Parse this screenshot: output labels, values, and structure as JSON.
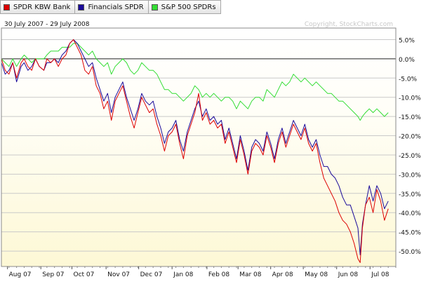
{
  "legend": [
    {
      "label": "SPDR KBW Bank",
      "color": "#dd0000"
    },
    {
      "label": "Financials SPDR",
      "color": "#1a0a9a"
    },
    {
      "label": "S&P 500 SPDRs",
      "color": "#33dd33"
    }
  ],
  "date_range": "30 July 2007 - 29 July 2008",
  "watermark": "Copyright, StockCharts.com",
  "chart_data": {
    "type": "line",
    "title": "30 July 2007 - 29 July 2008",
    "xlabel": "",
    "ylabel": "",
    "x_range": [
      0,
      52
    ],
    "ylim": [
      -54,
      8
    ],
    "y_ticks": [
      5,
      0,
      -5,
      -10,
      -15,
      -20,
      -25,
      -30,
      -35,
      -40,
      -45,
      -50
    ],
    "y_tick_labels": [
      "5.0%",
      "0.0%",
      "-5.0%",
      "-10.0%",
      "-15.0%",
      "-20.0%",
      "-25.0%",
      "-30.0%",
      "-35.0%",
      "-40.0%",
      "-45.0%",
      "-50.0%"
    ],
    "x_ticks": [
      {
        "label": "Aug 07",
        "x": 0.8
      },
      {
        "label": "Sep 07",
        "x": 5.2
      },
      {
        "label": "Oct 07",
        "x": 9.3
      },
      {
        "label": "Nov 07",
        "x": 13.8
      },
      {
        "label": "Dec 07",
        "x": 18.1
      },
      {
        "label": "Jan 08",
        "x": 22.5
      },
      {
        "label": "Feb 08",
        "x": 27.1
      },
      {
        "label": "Mar 08",
        "x": 31.2
      },
      {
        "label": "Apr 08",
        "x": 35.5
      },
      {
        "label": "May 08",
        "x": 39.8
      },
      {
        "label": "Jun 08",
        "x": 44.2
      },
      {
        "label": "Jul 08",
        "x": 48.6
      }
    ],
    "series": [
      {
        "name": "SPDR KBW Bank",
        "color": "#dd0000",
        "points": [
          [
            0,
            0
          ],
          [
            0.5,
            -3
          ],
          [
            1,
            -4
          ],
          [
            1.5,
            -1
          ],
          [
            2,
            -5
          ],
          [
            2.6,
            -1
          ],
          [
            3,
            0
          ],
          [
            3.5,
            -2
          ],
          [
            4,
            -3
          ],
          [
            4.5,
            0
          ],
          [
            5,
            -2
          ],
          [
            5.6,
            -3
          ],
          [
            6,
            0
          ],
          [
            6.5,
            -1
          ],
          [
            7,
            0
          ],
          [
            7.5,
            -2
          ],
          [
            8,
            0
          ],
          [
            8.5,
            1
          ],
          [
            9,
            4
          ],
          [
            9.5,
            5
          ],
          [
            10,
            3
          ],
          [
            10.5,
            1
          ],
          [
            11,
            -3
          ],
          [
            11.5,
            -4
          ],
          [
            12,
            -2
          ],
          [
            12.5,
            -7
          ],
          [
            13,
            -9
          ],
          [
            13.5,
            -13
          ],
          [
            14,
            -11
          ],
          [
            14.5,
            -16
          ],
          [
            15,
            -11
          ],
          [
            15.5,
            -9
          ],
          [
            16,
            -7
          ],
          [
            16.5,
            -11
          ],
          [
            17,
            -15
          ],
          [
            17.5,
            -18
          ],
          [
            18,
            -14
          ],
          [
            18.5,
            -10
          ],
          [
            19,
            -12
          ],
          [
            19.5,
            -14
          ],
          [
            20,
            -13
          ],
          [
            20.5,
            -17
          ],
          [
            21,
            -20
          ],
          [
            21.5,
            -24
          ],
          [
            22,
            -20
          ],
          [
            22.5,
            -19
          ],
          [
            23,
            -17
          ],
          [
            23.5,
            -22
          ],
          [
            24,
            -26
          ],
          [
            24.5,
            -20
          ],
          [
            25,
            -17
          ],
          [
            25.5,
            -14
          ],
          [
            26,
            -9
          ],
          [
            26.5,
            -16
          ],
          [
            27,
            -14
          ],
          [
            27.5,
            -17
          ],
          [
            28,
            -16
          ],
          [
            28.5,
            -18
          ],
          [
            29,
            -17
          ],
          [
            29.5,
            -22
          ],
          [
            30,
            -19
          ],
          [
            30.5,
            -23
          ],
          [
            31,
            -27
          ],
          [
            31.5,
            -21
          ],
          [
            32,
            -25
          ],
          [
            32.5,
            -30
          ],
          [
            33,
            -24
          ],
          [
            33.5,
            -22
          ],
          [
            34,
            -23
          ],
          [
            34.5,
            -25
          ],
          [
            35,
            -20
          ],
          [
            35.5,
            -23
          ],
          [
            36,
            -27
          ],
          [
            36.5,
            -22
          ],
          [
            37,
            -19
          ],
          [
            37.5,
            -23
          ],
          [
            38,
            -20
          ],
          [
            38.5,
            -17
          ],
          [
            39,
            -19
          ],
          [
            39.5,
            -21
          ],
          [
            40,
            -18
          ],
          [
            40.5,
            -22
          ],
          [
            41,
            -24
          ],
          [
            41.5,
            -22
          ],
          [
            42,
            -27
          ],
          [
            42.5,
            -31
          ],
          [
            43,
            -33
          ],
          [
            43.5,
            -35
          ],
          [
            44,
            -37
          ],
          [
            44.5,
            -40
          ],
          [
            45,
            -42
          ],
          [
            45.5,
            -43
          ],
          [
            46,
            -45
          ],
          [
            46.5,
            -48
          ],
          [
            47,
            -52
          ],
          [
            47.3,
            -53
          ],
          [
            47.6,
            -44
          ],
          [
            48,
            -38
          ],
          [
            48.5,
            -36
          ],
          [
            49,
            -40
          ],
          [
            49.5,
            -34
          ],
          [
            50,
            -37
          ],
          [
            50.5,
            -42
          ],
          [
            51,
            -39
          ]
        ]
      },
      {
        "name": "Financials SPDR",
        "color": "#1a0a9a",
        "points": [
          [
            0,
            -1
          ],
          [
            0.5,
            -4
          ],
          [
            1,
            -3
          ],
          [
            1.5,
            -1
          ],
          [
            2,
            -6
          ],
          [
            2.6,
            -2
          ],
          [
            3,
            -1
          ],
          [
            3.5,
            -3
          ],
          [
            4,
            -2
          ],
          [
            4.5,
            0
          ],
          [
            5,
            -2
          ],
          [
            5.6,
            -3
          ],
          [
            6,
            -1
          ],
          [
            6.5,
            -1
          ],
          [
            7,
            0
          ],
          [
            7.5,
            -1
          ],
          [
            8,
            1
          ],
          [
            8.5,
            2
          ],
          [
            9,
            4
          ],
          [
            9.5,
            5
          ],
          [
            10,
            4
          ],
          [
            10.5,
            2
          ],
          [
            11,
            0
          ],
          [
            11.5,
            -2
          ],
          [
            12,
            -1
          ],
          [
            12.5,
            -5
          ],
          [
            13,
            -8
          ],
          [
            13.5,
            -11
          ],
          [
            14,
            -9
          ],
          [
            14.5,
            -14
          ],
          [
            15,
            -10
          ],
          [
            15.5,
            -8
          ],
          [
            16,
            -6
          ],
          [
            16.5,
            -10
          ],
          [
            17,
            -13
          ],
          [
            17.5,
            -16
          ],
          [
            18,
            -13
          ],
          [
            18.5,
            -9
          ],
          [
            19,
            -11
          ],
          [
            19.5,
            -12
          ],
          [
            20,
            -11
          ],
          [
            20.5,
            -15
          ],
          [
            21,
            -18
          ],
          [
            21.5,
            -22
          ],
          [
            22,
            -19
          ],
          [
            22.5,
            -18
          ],
          [
            23,
            -16
          ],
          [
            23.5,
            -21
          ],
          [
            24,
            -24
          ],
          [
            24.5,
            -19
          ],
          [
            25,
            -16
          ],
          [
            25.5,
            -13
          ],
          [
            26,
            -11
          ],
          [
            26.5,
            -15
          ],
          [
            27,
            -13
          ],
          [
            27.5,
            -16
          ],
          [
            28,
            -15
          ],
          [
            28.5,
            -17
          ],
          [
            29,
            -16
          ],
          [
            29.5,
            -21
          ],
          [
            30,
            -18
          ],
          [
            30.5,
            -22
          ],
          [
            31,
            -26
          ],
          [
            31.5,
            -20
          ],
          [
            32,
            -24
          ],
          [
            32.5,
            -29
          ],
          [
            33,
            -23
          ],
          [
            33.5,
            -21
          ],
          [
            34,
            -22
          ],
          [
            34.5,
            -24
          ],
          [
            35,
            -19
          ],
          [
            35.5,
            -22
          ],
          [
            36,
            -26
          ],
          [
            36.5,
            -21
          ],
          [
            37,
            -18
          ],
          [
            37.5,
            -22
          ],
          [
            38,
            -19
          ],
          [
            38.5,
            -16
          ],
          [
            39,
            -18
          ],
          [
            39.5,
            -20
          ],
          [
            40,
            -17
          ],
          [
            40.5,
            -21
          ],
          [
            41,
            -23
          ],
          [
            41.5,
            -21
          ],
          [
            42,
            -25
          ],
          [
            42.5,
            -28
          ],
          [
            43,
            -28
          ],
          [
            43.5,
            -30
          ],
          [
            44,
            -31
          ],
          [
            44.5,
            -33
          ],
          [
            45,
            -36
          ],
          [
            45.5,
            -38
          ],
          [
            46,
            -38
          ],
          [
            46.5,
            -41
          ],
          [
            47,
            -44
          ],
          [
            47.3,
            -51
          ],
          [
            47.6,
            -43
          ],
          [
            48,
            -38
          ],
          [
            48.5,
            -33
          ],
          [
            49,
            -37
          ],
          [
            49.5,
            -33
          ],
          [
            50,
            -35
          ],
          [
            50.5,
            -39
          ],
          [
            51,
            -37
          ]
        ]
      },
      {
        "name": "S&P 500 SPDRs",
        "color": "#33dd33",
        "points": [
          [
            0,
            0
          ],
          [
            0.5,
            -1
          ],
          [
            1,
            -2
          ],
          [
            1.5,
            0
          ],
          [
            2,
            -2
          ],
          [
            2.6,
            0
          ],
          [
            3,
            1
          ],
          [
            3.5,
            0
          ],
          [
            4,
            -1
          ],
          [
            4.5,
            0
          ],
          [
            5,
            0
          ],
          [
            5.6,
            0
          ],
          [
            6,
            1
          ],
          [
            6.5,
            2
          ],
          [
            7,
            2
          ],
          [
            7.5,
            2
          ],
          [
            8,
            3
          ],
          [
            8.5,
            3
          ],
          [
            9,
            3
          ],
          [
            9.5,
            4
          ],
          [
            10,
            4
          ],
          [
            10.5,
            3
          ],
          [
            11,
            2
          ],
          [
            11.5,
            1
          ],
          [
            12,
            2
          ],
          [
            12.5,
            0
          ],
          [
            13,
            -1
          ],
          [
            13.5,
            -2
          ],
          [
            14,
            -1
          ],
          [
            14.5,
            -4
          ],
          [
            15,
            -2
          ],
          [
            15.5,
            -1
          ],
          [
            16,
            0
          ],
          [
            16.5,
            -1
          ],
          [
            17,
            -3
          ],
          [
            17.5,
            -4
          ],
          [
            18,
            -3
          ],
          [
            18.5,
            -1
          ],
          [
            19,
            -2
          ],
          [
            19.5,
            -3
          ],
          [
            20,
            -3
          ],
          [
            20.5,
            -4
          ],
          [
            21,
            -6
          ],
          [
            21.5,
            -8
          ],
          [
            22,
            -8
          ],
          [
            22.5,
            -9
          ],
          [
            23,
            -9
          ],
          [
            23.5,
            -10
          ],
          [
            24,
            -11
          ],
          [
            24.5,
            -10
          ],
          [
            25,
            -9
          ],
          [
            25.5,
            -7
          ],
          [
            26,
            -8
          ],
          [
            26.5,
            -10
          ],
          [
            27,
            -9
          ],
          [
            27.5,
            -10
          ],
          [
            28,
            -9
          ],
          [
            28.5,
            -10
          ],
          [
            29,
            -11
          ],
          [
            29.5,
            -10
          ],
          [
            30,
            -10
          ],
          [
            30.5,
            -11
          ],
          [
            31,
            -13
          ],
          [
            31.5,
            -11
          ],
          [
            32,
            -12
          ],
          [
            32.5,
            -13
          ],
          [
            33,
            -11
          ],
          [
            33.5,
            -10
          ],
          [
            34,
            -10
          ],
          [
            34.5,
            -11
          ],
          [
            35,
            -8
          ],
          [
            35.5,
            -9
          ],
          [
            36,
            -10
          ],
          [
            36.5,
            -8
          ],
          [
            37,
            -6
          ],
          [
            37.5,
            -7
          ],
          [
            38,
            -6
          ],
          [
            38.5,
            -4
          ],
          [
            39,
            -5
          ],
          [
            39.5,
            -6
          ],
          [
            40,
            -5
          ],
          [
            40.5,
            -6
          ],
          [
            41,
            -7
          ],
          [
            41.5,
            -6
          ],
          [
            42,
            -7
          ],
          [
            42.5,
            -8
          ],
          [
            43,
            -9
          ],
          [
            43.5,
            -9
          ],
          [
            44,
            -10
          ],
          [
            44.5,
            -11
          ],
          [
            45,
            -11
          ],
          [
            45.5,
            -12
          ],
          [
            46,
            -13
          ],
          [
            46.5,
            -14
          ],
          [
            47,
            -15
          ],
          [
            47.3,
            -16
          ],
          [
            47.6,
            -15
          ],
          [
            48,
            -14
          ],
          [
            48.5,
            -13
          ],
          [
            49,
            -14
          ],
          [
            49.5,
            -13
          ],
          [
            50,
            -14
          ],
          [
            50.5,
            -15
          ],
          [
            51,
            -14
          ]
        ]
      }
    ]
  }
}
